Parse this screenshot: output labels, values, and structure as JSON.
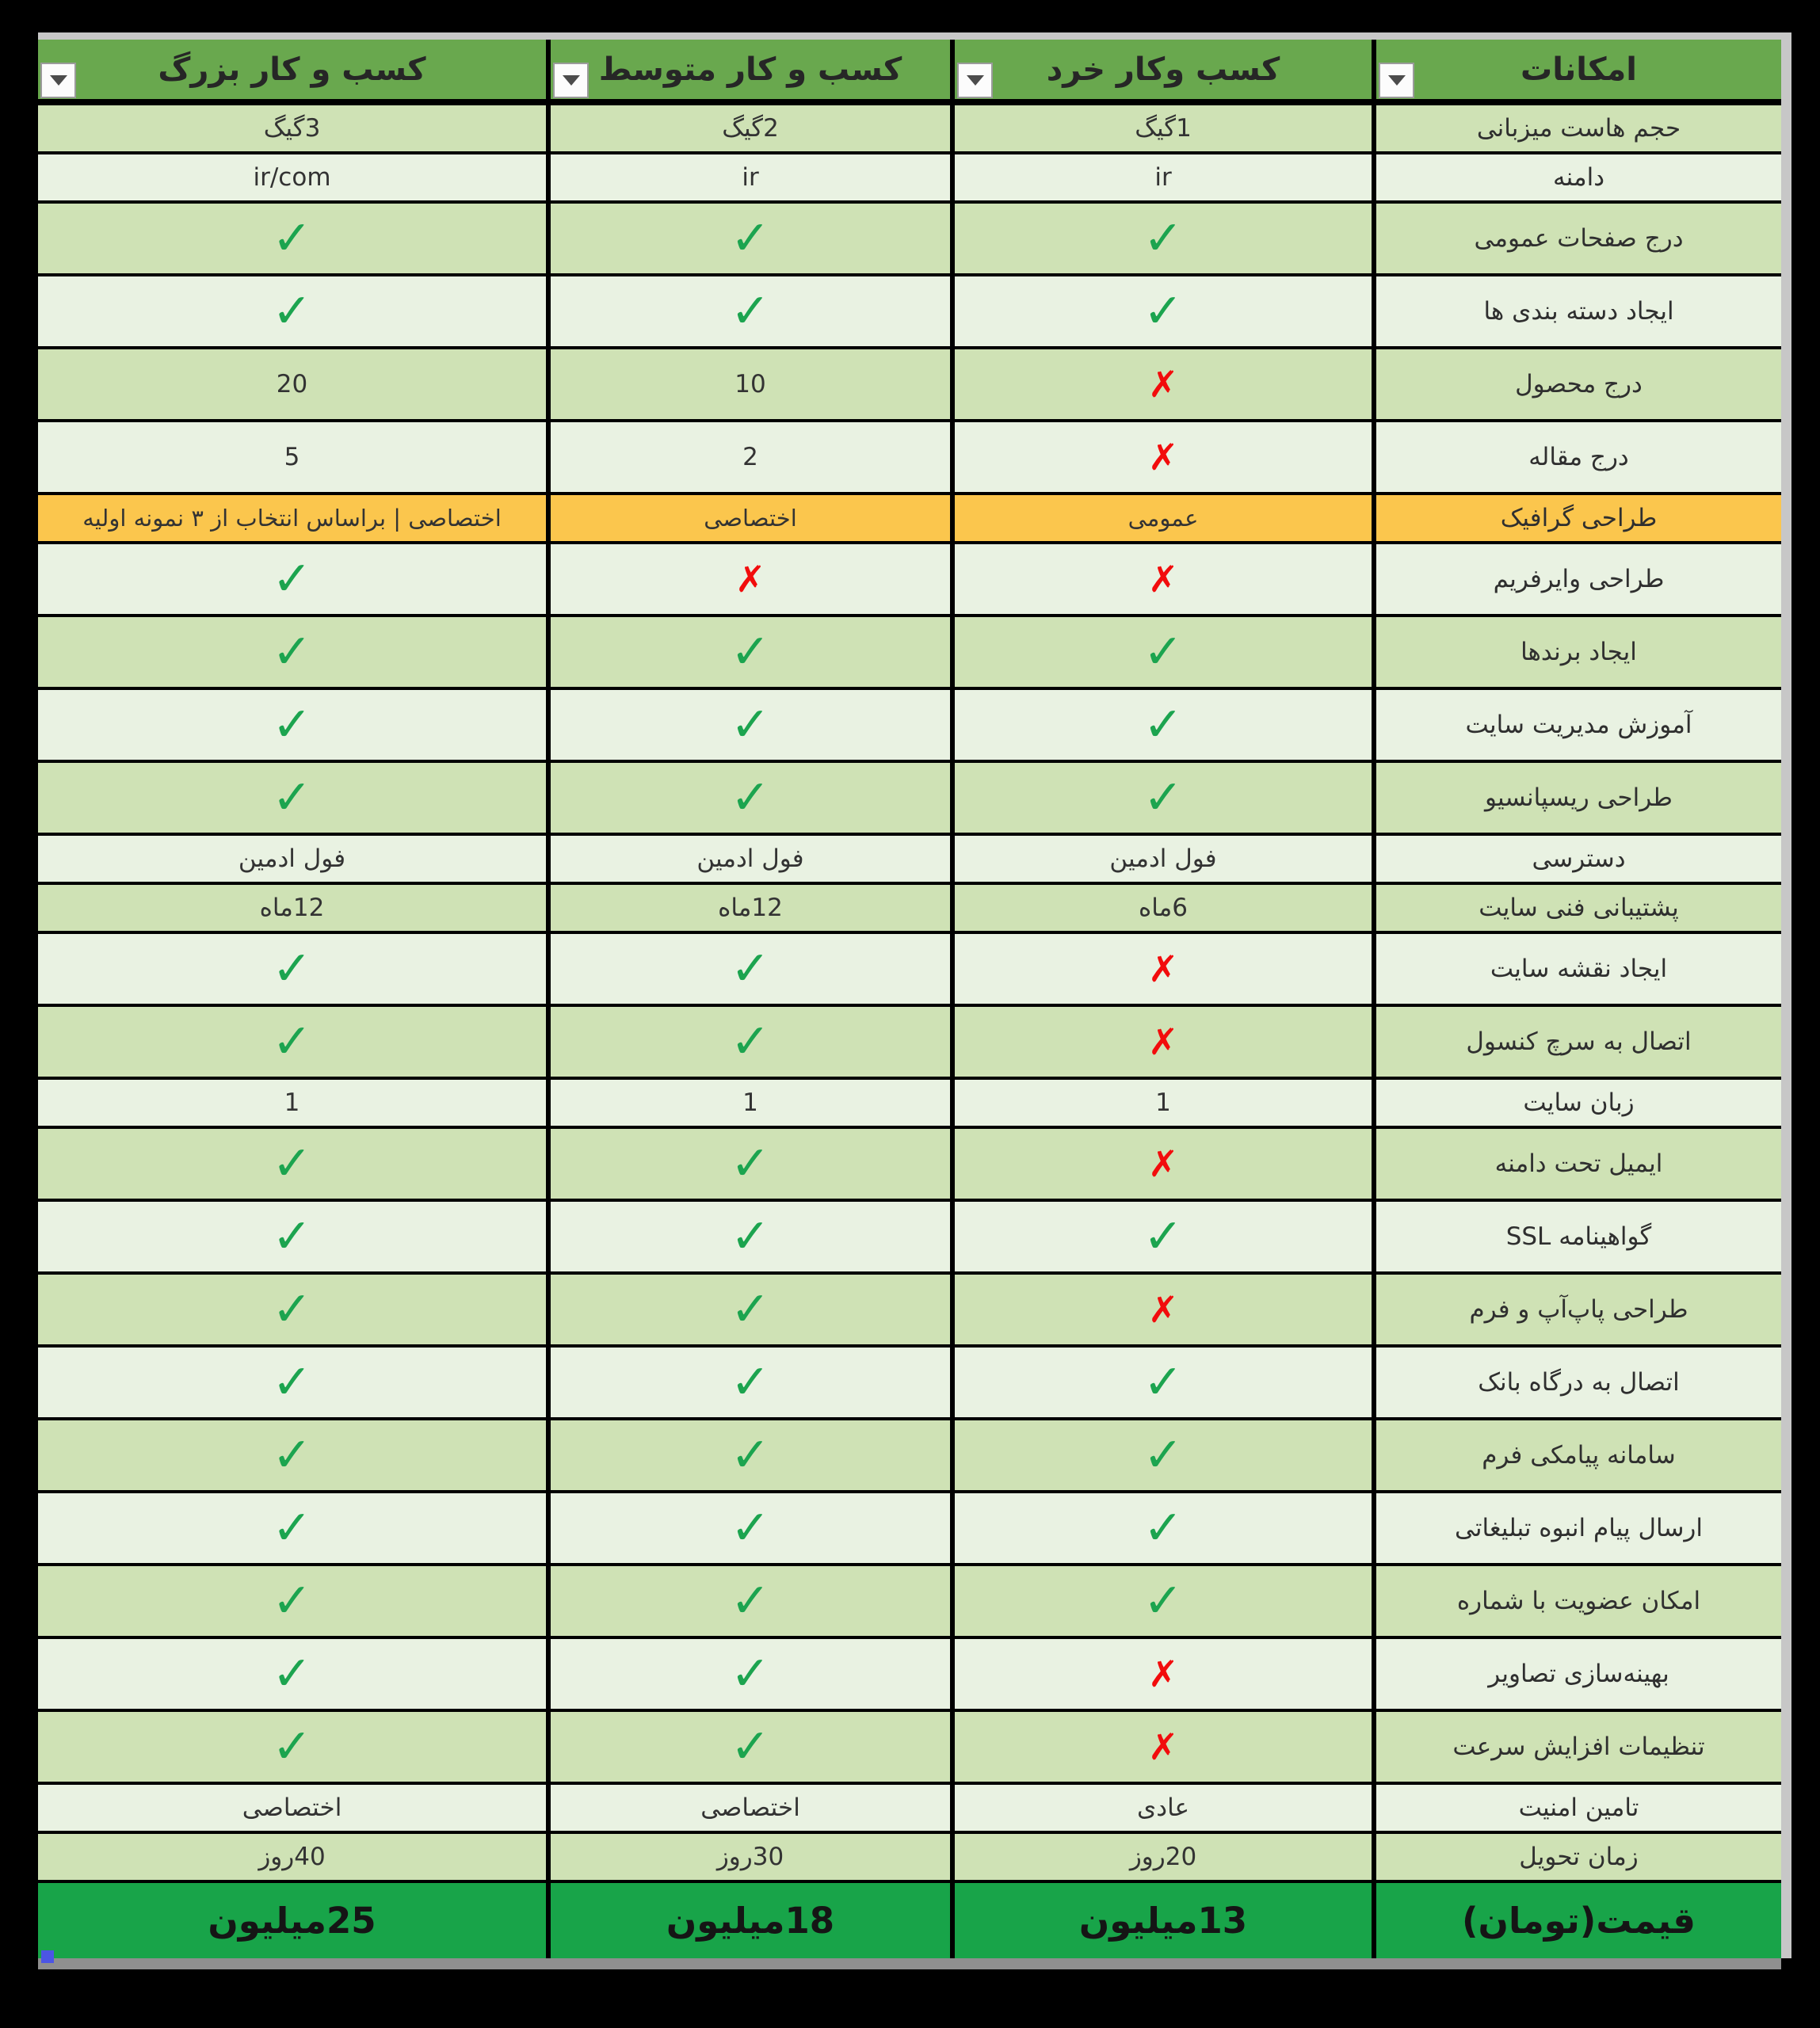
{
  "icons": {
    "check": "✓",
    "cross": "✗",
    "chevron_down": "▼"
  },
  "colors": {
    "header_green": "#69a84e",
    "row_green_medium": "#cfe2b5",
    "row_green_light": "#e9f2e2",
    "highlight_yellow": "#fbc64d",
    "price_green": "#18a449",
    "check_green": "#1ca44f",
    "cross_red": "#f20c0c"
  },
  "table": {
    "header": {
      "feature": "امکانات",
      "plans": {
        "micro": "کسب وکار خرد",
        "medium": "کسب و کار متوسط",
        "large": "کسب و کار بزرگ"
      }
    },
    "rows": [
      {
        "feature": "حجم هاست میزبانی",
        "size": "short",
        "variant": "normal",
        "cells": {
          "micro": "1گیگ",
          "medium": "2گیگ",
          "large": "3گیگ"
        }
      },
      {
        "feature": "دامنه",
        "size": "short",
        "variant": "normal",
        "cells": {
          "micro": "ir",
          "medium": "ir",
          "large": "ir/com"
        }
      },
      {
        "feature": "درج صفحات عمومی",
        "size": "tall",
        "variant": "normal",
        "cells": {
          "micro": "check",
          "medium": "check",
          "large": "check"
        }
      },
      {
        "feature": "ایجاد دسته بندی ها",
        "size": "tall",
        "variant": "normal",
        "cells": {
          "micro": "check",
          "medium": "check",
          "large": "check"
        }
      },
      {
        "feature": "درج محصول",
        "size": "tall",
        "variant": "normal",
        "cells": {
          "micro": "cross",
          "medium": "10",
          "large": "20"
        }
      },
      {
        "feature": "درج مقاله",
        "size": "tall",
        "variant": "normal",
        "cells": {
          "micro": "cross",
          "medium": "2",
          "large": "5"
        }
      },
      {
        "feature": "طراحی گرافیک",
        "size": "short",
        "variant": "highlight",
        "cells": {
          "micro": "عمومی",
          "medium": "اختصاصی",
          "large": "اختصاصی | براساس انتخاب از ۳ نمونه اولیه"
        }
      },
      {
        "feature": "طراحی وایرفریم",
        "size": "tall",
        "variant": "normal",
        "cells": {
          "micro": "cross",
          "medium": "cross",
          "large": "check"
        }
      },
      {
        "feature": "ایجاد برندها",
        "size": "tall",
        "variant": "normal",
        "cells": {
          "micro": "check",
          "medium": "check",
          "large": "check"
        }
      },
      {
        "feature": "آموزش مدیریت سایت",
        "size": "tall",
        "variant": "normal",
        "cells": {
          "micro": "check",
          "medium": "check",
          "large": "check"
        }
      },
      {
        "feature": "طراحی ریسپانسیو",
        "size": "tall",
        "variant": "normal",
        "cells": {
          "micro": "check",
          "medium": "check",
          "large": "check"
        }
      },
      {
        "feature": "دسترسی",
        "size": "short",
        "variant": "normal",
        "cells": {
          "micro": "فول ادمین",
          "medium": "فول ادمین",
          "large": "فول ادمین"
        }
      },
      {
        "feature": "پشتیبانی فنی سایت",
        "size": "short",
        "variant": "normal",
        "cells": {
          "micro": "6ماه",
          "medium": "12ماه",
          "large": "12ماه"
        }
      },
      {
        "feature": "ایجاد نقشه سایت",
        "size": "tall",
        "variant": "normal",
        "cells": {
          "micro": "cross",
          "medium": "check",
          "large": "check"
        }
      },
      {
        "feature": "اتصال به سرچ کنسول",
        "size": "tall",
        "variant": "normal",
        "cells": {
          "micro": "cross",
          "medium": "check",
          "large": "check"
        }
      },
      {
        "feature": "زبان سایت",
        "size": "short",
        "variant": "normal",
        "cells": {
          "micro": "1",
          "medium": "1",
          "large": "1"
        }
      },
      {
        "feature": "ایمیل تحت دامنه",
        "size": "tall",
        "variant": "normal",
        "cells": {
          "micro": "cross",
          "medium": "check",
          "large": "check"
        }
      },
      {
        "feature": "گواهینامه SSL",
        "size": "tall",
        "variant": "normal",
        "cells": {
          "micro": "check",
          "medium": "check",
          "large": "check"
        }
      },
      {
        "feature": "طراحی پاپ‌آپ و فرم",
        "size": "tall",
        "variant": "normal",
        "cells": {
          "micro": "cross",
          "medium": "check",
          "large": "check"
        }
      },
      {
        "feature": "اتصال به درگاه بانک",
        "size": "tall",
        "variant": "normal",
        "cells": {
          "micro": "check",
          "medium": "check",
          "large": "check"
        }
      },
      {
        "feature": "سامانه پیامکی فرم",
        "size": "tall",
        "variant": "normal",
        "cells": {
          "micro": "check",
          "medium": "check",
          "large": "check"
        }
      },
      {
        "feature": "ارسال پیام انبوه تبلیغاتی",
        "size": "tall",
        "variant": "normal",
        "cells": {
          "micro": "check",
          "medium": "check",
          "large": "check"
        }
      },
      {
        "feature": "امکان عضویت با شماره",
        "size": "tall",
        "variant": "normal",
        "cells": {
          "micro": "check",
          "medium": "check",
          "large": "check"
        }
      },
      {
        "feature": "بهینه‌سازی تصاویر",
        "size": "tall",
        "variant": "normal",
        "cells": {
          "micro": "cross",
          "medium": "check",
          "large": "check"
        }
      },
      {
        "feature": "تنظیمات افزایش سرعت",
        "size": "tall",
        "variant": "normal",
        "cells": {
          "micro": "cross",
          "medium": "check",
          "large": "check"
        }
      },
      {
        "feature": "تامین امنیت",
        "size": "short",
        "variant": "normal",
        "cells": {
          "micro": "عادی",
          "medium": "اختصاصی",
          "large": "اختصاصی"
        }
      },
      {
        "feature": "زمان تحویل",
        "size": "short",
        "variant": "normal",
        "cells": {
          "micro": "20روز",
          "medium": "30روز",
          "large": "40روز"
        }
      },
      {
        "feature": "قیمت(تومان)",
        "size": "price",
        "variant": "price",
        "cells": {
          "micro": "13میلیون",
          "medium": "18میلیون",
          "large": "25میلیون"
        }
      }
    ]
  }
}
